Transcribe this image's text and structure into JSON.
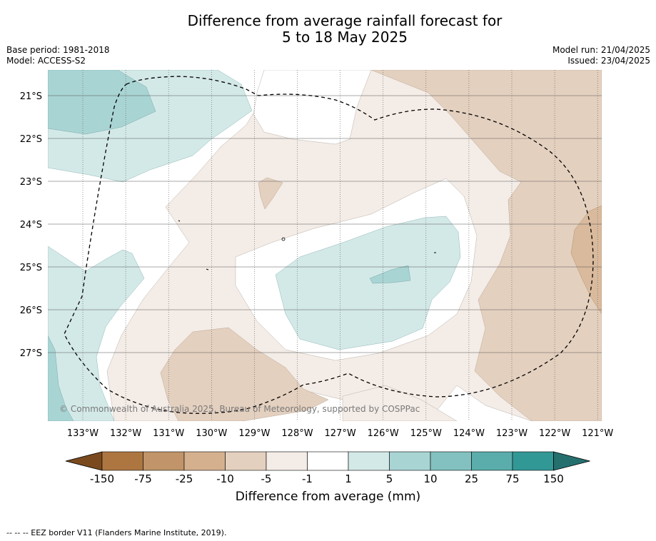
{
  "title_line1": "Difference from average rainfall forecast for",
  "title_line2": "5 to 18 May 2025",
  "base_period": "Base period: 1981-2018",
  "model": "Model: ACCESS-S2",
  "model_run": "Model run: 21/04/2025",
  "issued": "Issued: 23/04/2025",
  "credit": "© Commonwealth of Australia 2025, Bureau of Meteorology, supported by COSPPac",
  "lat_labels": [
    "21°S",
    "22°S",
    "23°S",
    "24°S",
    "25°S",
    "26°S",
    "27°S"
  ],
  "lon_labels": [
    "133°W",
    "132°W",
    "131°W",
    "130°W",
    "129°W",
    "128°W",
    "127°W",
    "126°W",
    "125°W",
    "124°W",
    "123°W",
    "122°W",
    "121°W"
  ],
  "colorbar": {
    "title": "Difference from average (mm)",
    "ticks": [
      "-150",
      "-75",
      "-25",
      "-10",
      "-5",
      "-1",
      "1",
      "5",
      "10",
      "25",
      "75",
      "150"
    ],
    "colors": [
      "#7a4a1e",
      "#ad7641",
      "#c19569",
      "#d4b08e",
      "#e4d0bf",
      "#f4ece6",
      "#ffffff",
      "#d3e9e8",
      "#a9d4d4",
      "#82c1bf",
      "#5aadab",
      "#329896",
      "#25706f"
    ]
  },
  "footnote": "--  --  -- EEZ border V11 (Flanders Marine Institute, 2019)."
}
